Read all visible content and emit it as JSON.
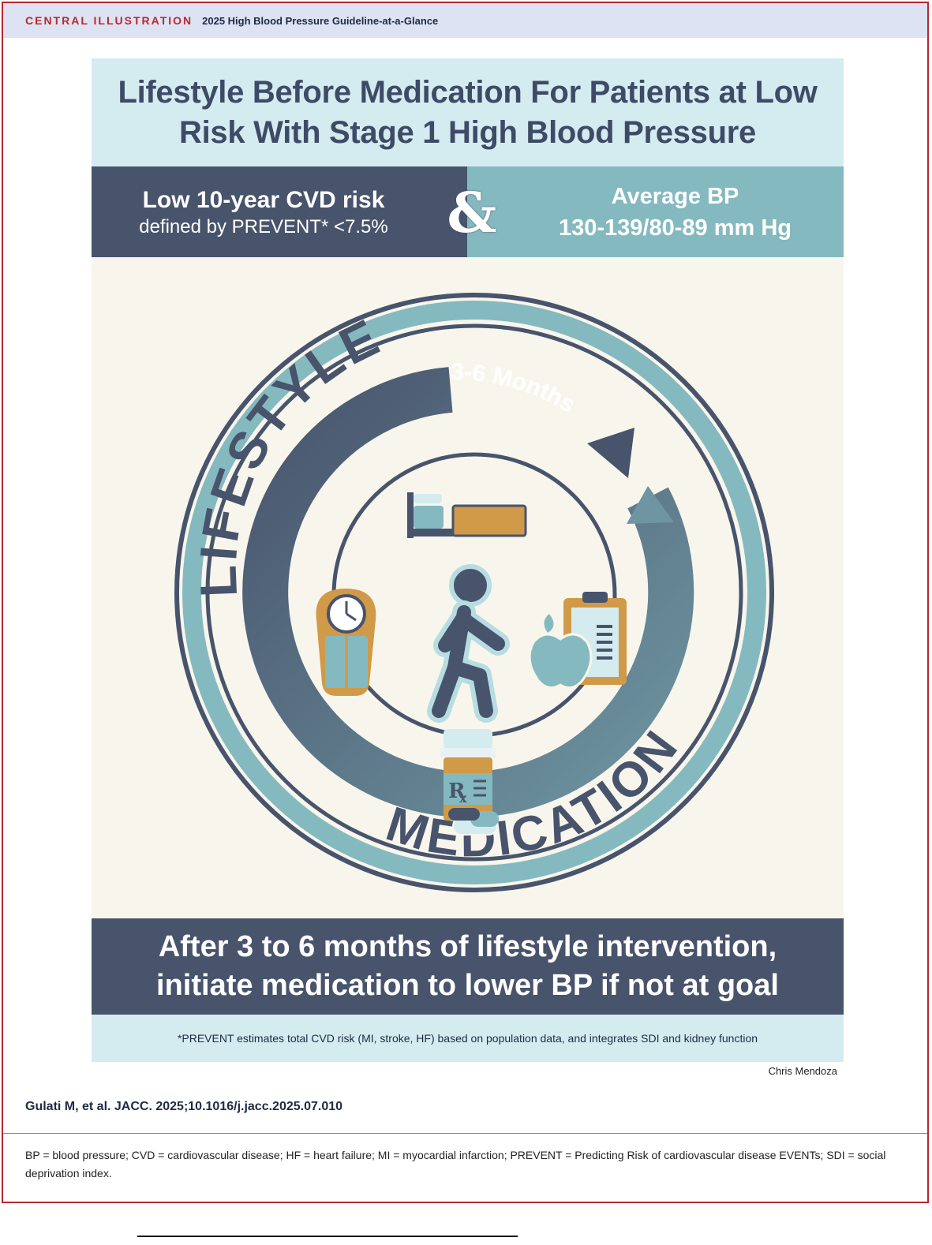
{
  "header": {
    "label": "CENTRAL ILLUSTRATION",
    "subtitle": "2025 High Blood Pressure Guideline-at-a-Glance"
  },
  "title": {
    "line1": "Lifestyle Before Medication For Patients at Low",
    "line2": "Risk With Stage 1 High Blood Pressure"
  },
  "criteria": {
    "left_main": "Low 10-year CVD risk",
    "left_sub": "defined by PREVENT* <7.5%",
    "connector": "&",
    "right_main": "Average BP",
    "right_value": "130-139/80-89 mm Hg"
  },
  "cycle": {
    "outer_top_label": "LIFESTYLE",
    "outer_bottom_label": "MEDICATION",
    "duration_label": "3-6 Months",
    "rx_label": "R",
    "rx_sub": "x"
  },
  "icons": [
    "bed-icon",
    "scale-icon",
    "walking-person-icon",
    "apple-icon",
    "clipboard-icon",
    "pill-bottle-icon"
  ],
  "conclusion": {
    "line1": "After 3 to 6 months of lifestyle intervention,",
    "line2": "initiate medication to lower BP if not at goal"
  },
  "footnote": "*PREVENT estimates total CVD risk (MI, stroke, HF) based on population data, and integrates SDI and kidney function",
  "credit": "Chris Mendoza",
  "citation": "Gulati M, et al. JACC. 2025;10.1016/j.jacc.2025.07.010",
  "abbreviations": "BP = blood pressure; CVD = cardiovascular disease; HF = heart failure; MI = myocardial infarction; PREVENT = Predicting Risk of cardiovascular disease EVENTs; SDI = social deprivation index.",
  "colors": {
    "accent_red": "#b8292f",
    "navy": "#48546c",
    "teal": "#85b9c0",
    "light_teal": "#d4ecf0",
    "cream": "#f8f6ec",
    "gold": "#d09a48"
  }
}
